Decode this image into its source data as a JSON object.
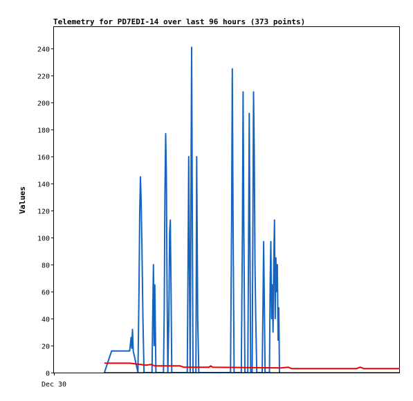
{
  "chart_data": {
    "type": "line",
    "title": "Telemetry for PD7EDI-14 over last 96 hours (373 points)",
    "xlabel": "",
    "ylabel": "Values",
    "x_tick_labels": [
      "Dec 30"
    ],
    "ylim": [
      0,
      256
    ],
    "y_ticks": [
      0,
      20,
      40,
      60,
      80,
      100,
      120,
      140,
      160,
      180,
      200,
      220,
      240
    ],
    "xlim": [
      0,
      96
    ],
    "grid": false,
    "legend": "none",
    "colors": {
      "blue": "#1565c0",
      "red": "#ee0000",
      "black": "#000000"
    },
    "series": [
      {
        "color": "#1565c0",
        "points": [
          [
            14,
            0
          ],
          [
            16,
            16
          ],
          [
            21,
            16
          ],
          [
            21.4,
            26
          ],
          [
            21.6,
            18
          ],
          [
            21.8,
            32
          ],
          [
            22,
            16
          ],
          [
            23.3,
            0
          ],
          [
            23.6,
            60
          ],
          [
            23.8,
            120
          ],
          [
            24,
            145
          ],
          [
            24.2,
            128
          ],
          [
            24.4,
            96
          ],
          [
            24.7,
            40
          ],
          [
            25,
            0
          ],
          [
            27.2,
            0
          ],
          [
            27.4,
            40
          ],
          [
            27.6,
            80
          ],
          [
            27.8,
            20
          ],
          [
            28,
            65
          ],
          [
            28.3,
            0
          ],
          [
            30.4,
            0
          ],
          [
            30.6,
            45
          ],
          [
            30.8,
            132
          ],
          [
            31,
            177
          ],
          [
            31.2,
            145
          ],
          [
            31.4,
            60
          ],
          [
            31.6,
            0
          ],
          [
            31.9,
            40
          ],
          [
            32.1,
            104
          ],
          [
            32.3,
            113
          ],
          [
            32.5,
            60
          ],
          [
            32.7,
            0
          ],
          [
            37,
            0
          ],
          [
            37.2,
            80
          ],
          [
            37.4,
            160
          ],
          [
            37.6,
            80
          ],
          [
            37.8,
            0
          ],
          [
            38,
            120
          ],
          [
            38.2,
            241
          ],
          [
            38.4,
            120
          ],
          [
            38.6,
            0
          ],
          [
            39.4,
            0
          ],
          [
            39.6,
            160
          ],
          [
            39.9,
            40
          ],
          [
            40.2,
            0
          ],
          [
            49,
            0
          ],
          [
            49.3,
            113
          ],
          [
            49.5,
            225
          ],
          [
            49.7,
            113
          ],
          [
            50,
            0
          ],
          [
            52,
            0
          ],
          [
            52.3,
            104
          ],
          [
            52.5,
            208
          ],
          [
            52.7,
            104
          ],
          [
            53,
            0
          ],
          [
            53.8,
            0
          ],
          [
            54,
            97
          ],
          [
            54.2,
            192
          ],
          [
            54.4,
            97
          ],
          [
            54.6,
            0
          ],
          [
            55,
            0
          ],
          [
            55.2,
            104
          ],
          [
            55.4,
            208
          ],
          [
            55.6,
            160
          ],
          [
            55.8,
            80
          ],
          [
            56,
            40
          ],
          [
            56.3,
            0
          ],
          [
            57.8,
            0
          ],
          [
            58,
            48
          ],
          [
            58.2,
            97
          ],
          [
            58.4,
            48
          ],
          [
            58.6,
            0
          ],
          [
            59.8,
            0
          ],
          [
            60,
            65
          ],
          [
            60.2,
            97
          ],
          [
            60.4,
            40
          ],
          [
            60.6,
            65
          ],
          [
            60.8,
            30
          ],
          [
            61,
            80
          ],
          [
            61.2,
            113
          ],
          [
            61.4,
            40
          ],
          [
            61.6,
            85
          ],
          [
            61.8,
            60
          ],
          [
            62,
            80
          ],
          [
            62.2,
            24
          ],
          [
            62.4,
            48
          ],
          [
            62.6,
            0
          ]
        ]
      },
      {
        "color": "#ee0000",
        "points": [
          [
            14,
            7
          ],
          [
            21,
            7
          ],
          [
            24,
            6
          ],
          [
            25.5,
            5.5
          ],
          [
            27,
            6
          ],
          [
            28,
            5
          ],
          [
            35,
            5
          ],
          [
            36,
            4
          ],
          [
            43,
            4
          ],
          [
            43.5,
            5
          ],
          [
            44,
            4
          ],
          [
            63,
            3.5
          ],
          [
            65,
            4
          ],
          [
            66,
            3
          ],
          [
            78,
            3
          ],
          [
            84,
            3
          ],
          [
            85,
            4
          ],
          [
            86,
            3
          ],
          [
            96,
            3
          ]
        ]
      },
      {
        "color": "#000000",
        "points": [
          [
            14,
            0
          ],
          [
            96,
            0
          ]
        ]
      }
    ]
  }
}
